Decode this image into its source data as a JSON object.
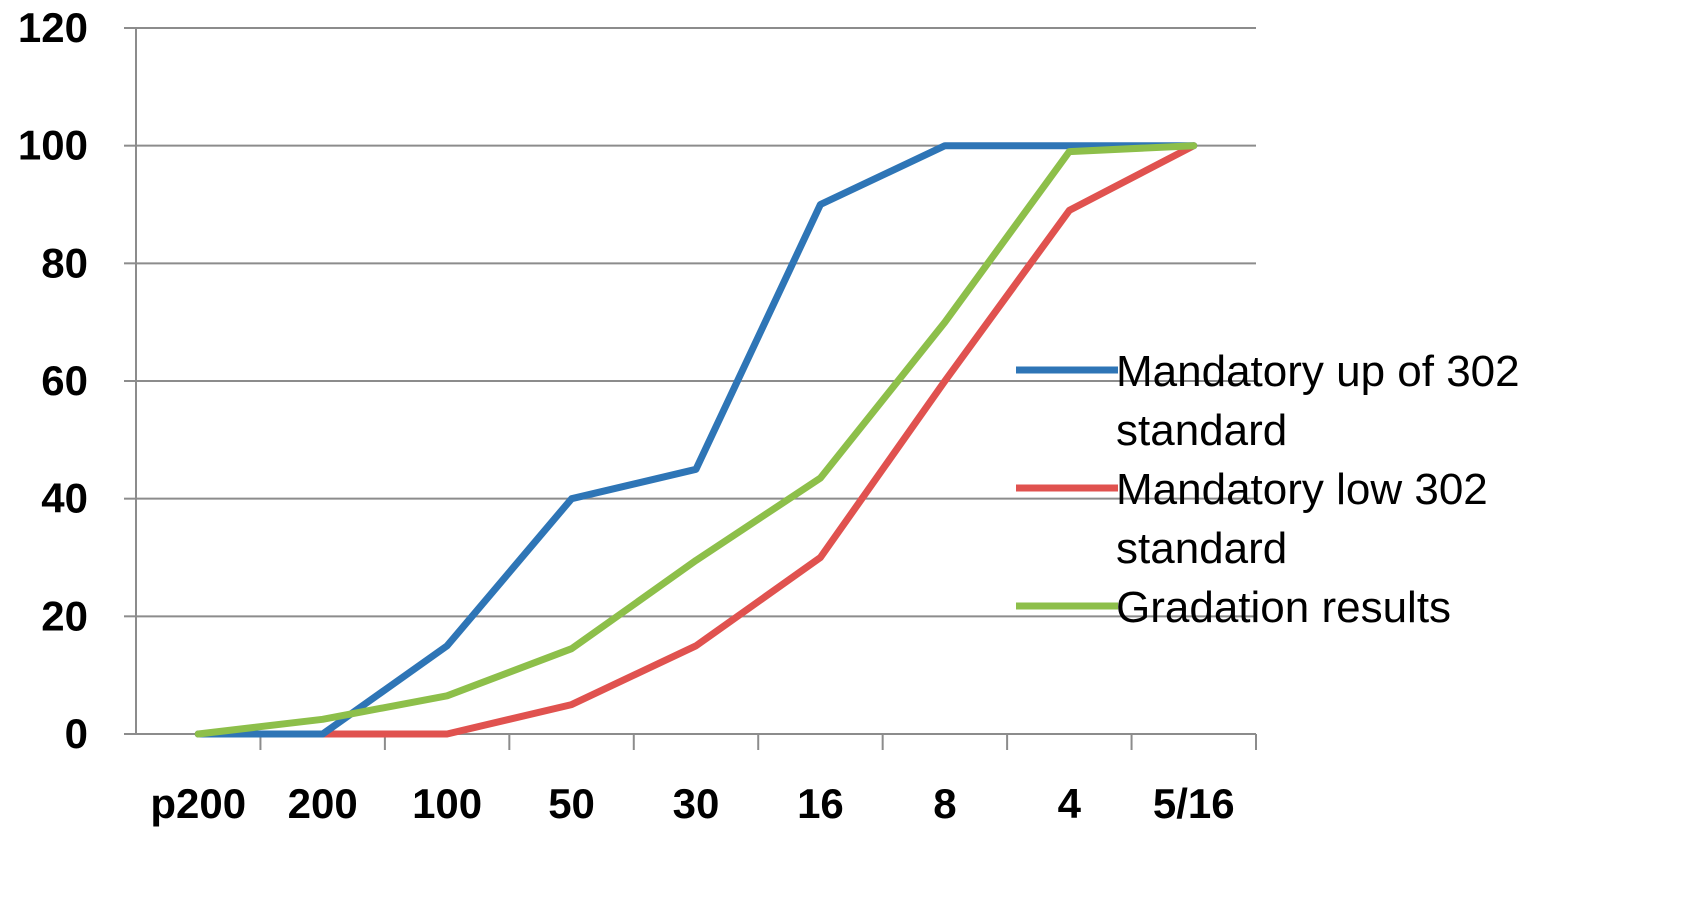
{
  "chart_data": {
    "type": "line",
    "categories": [
      "p200",
      "200",
      "100",
      "50",
      "30",
      "16",
      "8",
      "4",
      "5/16"
    ],
    "ylim": [
      0,
      120
    ],
    "yticks": [
      0,
      20,
      40,
      60,
      80,
      100,
      120
    ],
    "grid": "horizontal",
    "legend": "right",
    "series": [
      {
        "name": "Mandatory up of 302 standard",
        "legend_lines": [
          "Mandatory up of 302",
          "standard"
        ],
        "color": "#2E75B6",
        "values": [
          0,
          0,
          15,
          40,
          45,
          90,
          100,
          100,
          100
        ]
      },
      {
        "name": "Mandatory low 302 standard",
        "legend_lines": [
          "Mandatory low 302",
          "standard"
        ],
        "color": "#E0524F",
        "values": [
          0,
          0,
          0,
          5,
          15,
          30,
          60,
          89,
          100
        ]
      },
      {
        "name": "Gradation results",
        "legend_lines": [
          "Gradation results"
        ],
        "color": "#8DBF4A",
        "values": [
          0,
          2.5,
          6.5,
          14.5,
          29.5,
          43.5,
          70,
          99,
          100
        ]
      }
    ]
  }
}
